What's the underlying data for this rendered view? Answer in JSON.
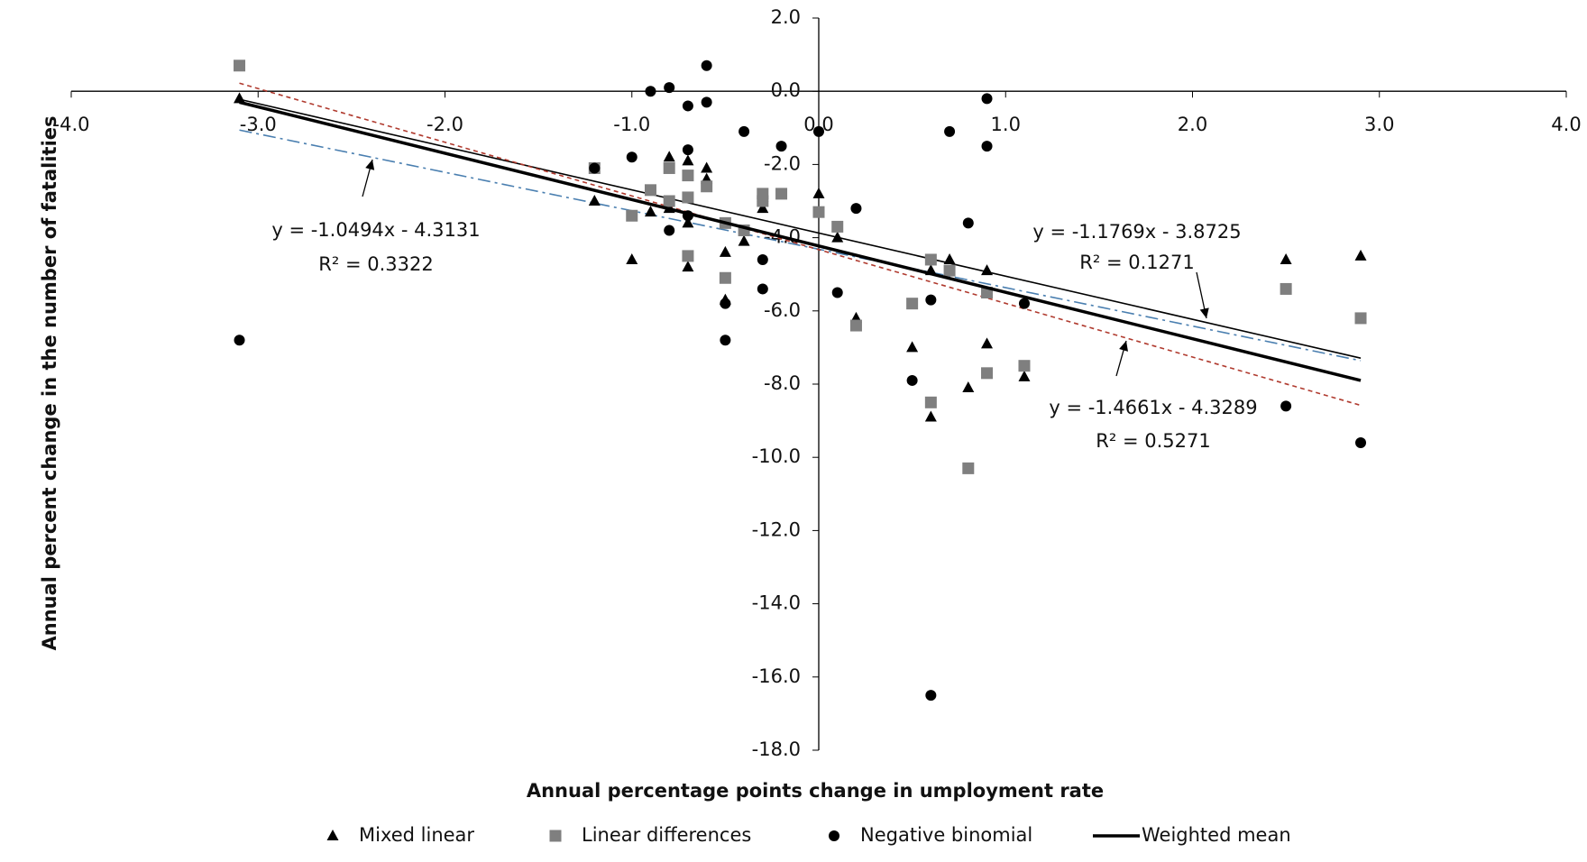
{
  "chart_data": {
    "type": "scatter",
    "x_label": "Annual percentage points change in umployment rate",
    "y_label": "Annual percent change in the number of fatalities",
    "xlim": [
      -4,
      4
    ],
    "ylim": [
      -18,
      2
    ],
    "xticks": [
      {
        "value": -4,
        "label": "-4.0"
      },
      {
        "value": -3,
        "label": "-3.0"
      },
      {
        "value": -2,
        "label": "-2.0"
      },
      {
        "value": -1,
        "label": "-1.0"
      },
      {
        "value": 0,
        "label": "0.0"
      },
      {
        "value": 1,
        "label": "1.0"
      },
      {
        "value": 2,
        "label": "2.0"
      },
      {
        "value": 3,
        "label": "3.0"
      },
      {
        "value": 4,
        "label": "4.0"
      }
    ],
    "yticks": [
      {
        "value": 2,
        "label": "2.0"
      },
      {
        "value": 0,
        "label": "0.0"
      },
      {
        "value": -2,
        "label": "-2.0"
      },
      {
        "value": -4,
        "label": "-4.0"
      },
      {
        "value": -6,
        "label": "-6.0"
      },
      {
        "value": -8,
        "label": "-8.0"
      },
      {
        "value": -10,
        "label": "-10.0"
      },
      {
        "value": -12,
        "label": "-12.0"
      },
      {
        "value": -14,
        "label": "-14.0"
      },
      {
        "value": -16,
        "label": "-16.0"
      },
      {
        "value": -18,
        "label": "-18.0"
      }
    ],
    "grid": false,
    "legend": "bottom",
    "series": [
      {
        "name": "Mixed linear",
        "color": "#000000",
        "marker": "triangle",
        "x": [
          -3.1,
          -1.2,
          -1.0,
          -0.9,
          -0.8,
          -0.8,
          -0.7,
          -0.7,
          -0.7,
          -0.6,
          -0.6,
          -0.5,
          -0.5,
          -0.4,
          -0.3,
          -0.3,
          0.0,
          0.1,
          0.2,
          0.5,
          0.6,
          0.6,
          0.7,
          0.8,
          0.9,
          0.9,
          1.1,
          2.5,
          2.9
        ],
        "values": [
          -0.2,
          -3.0,
          -4.6,
          -3.3,
          -1.8,
          -3.2,
          -1.9,
          -3.6,
          -4.8,
          -2.1,
          -2.4,
          -4.4,
          -5.7,
          -4.1,
          -2.9,
          -3.2,
          -2.8,
          -4.0,
          -6.2,
          -7.0,
          -4.9,
          -8.9,
          -4.6,
          -8.1,
          -4.9,
          -6.9,
          -7.8,
          -4.6,
          -4.5
        ]
      },
      {
        "name": "Linear differences",
        "color": "#7f7f7f",
        "marker": "square",
        "x": [
          -3.1,
          -1.2,
          -1.0,
          -0.9,
          -0.8,
          -0.8,
          -0.7,
          -0.7,
          -0.7,
          -0.6,
          -0.5,
          -0.5,
          -0.4,
          -0.3,
          -0.3,
          -0.2,
          0.0,
          0.1,
          0.2,
          0.5,
          0.6,
          0.6,
          0.7,
          0.8,
          0.9,
          0.9,
          1.1,
          2.5,
          2.9
        ],
        "values": [
          0.7,
          -2.1,
          -3.4,
          -2.7,
          -2.1,
          -3.0,
          -2.3,
          -2.9,
          -4.5,
          -2.6,
          -3.6,
          -5.1,
          -3.8,
          -2.8,
          -3.0,
          -2.8,
          -3.3,
          -3.7,
          -6.4,
          -5.8,
          -4.6,
          -8.5,
          -4.9,
          -10.3,
          -5.5,
          -7.7,
          -7.5,
          -5.4,
          -6.2
        ]
      },
      {
        "name": "Negative binomial",
        "color": "#000000",
        "marker": "circle",
        "x": [
          -3.1,
          -1.2,
          -1.0,
          -0.9,
          -0.8,
          -0.8,
          -0.7,
          -0.7,
          -0.7,
          -0.6,
          -0.6,
          -0.5,
          -0.5,
          -0.4,
          -0.2,
          -0.3,
          -0.3,
          0.0,
          0.1,
          0.2,
          0.5,
          0.6,
          0.6,
          0.7,
          0.8,
          0.9,
          0.9,
          1.1,
          2.5,
          2.9
        ],
        "values": [
          -6.8,
          -2.1,
          -1.8,
          0.0,
          0.1,
          -3.8,
          -0.4,
          -1.6,
          -3.4,
          0.7,
          -0.3,
          -5.8,
          -6.8,
          -1.1,
          -1.5,
          -4.6,
          -5.4,
          -1.1,
          -5.5,
          -3.2,
          -7.9,
          -5.7,
          -16.5,
          -1.1,
          -3.6,
          -0.2,
          -1.5,
          -5.8,
          -8.6,
          -9.6
        ]
      },
      {
        "name": "Weighted mean",
        "color": "#000000",
        "marker": "line",
        "x": [
          -3.1,
          2.9
        ],
        "values": [
          -0.3,
          -7.9
        ]
      }
    ],
    "trendlines": [
      {
        "equation": "y = -1.0494x - 4.3131",
        "r2": "R² = 0.3322",
        "color": "#4a7fb0",
        "dash": "14 5 3 5",
        "x": [
          -3.1,
          2.9
        ],
        "values": [
          -1.06,
          -7.36
        ]
      },
      {
        "equation": "y = -1.1769x - 3.8725",
        "r2": "R² = 0.1271",
        "color": "#000000",
        "dash": "none",
        "x": [
          -3.1,
          2.9
        ],
        "values": [
          -0.22,
          -7.29
        ]
      },
      {
        "equation": "y = -1.4661x - 4.3289",
        "r2": "R² = 0.5271",
        "color": "#b03a2e",
        "dash": "5 4",
        "x": [
          -3.1,
          2.9
        ],
        "values": [
          0.22,
          -8.58
        ]
      }
    ]
  }
}
